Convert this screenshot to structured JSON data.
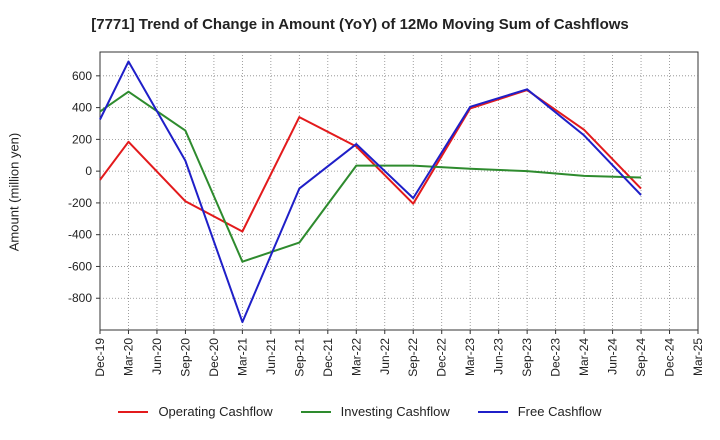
{
  "chart_data": {
    "type": "line",
    "title": "[7771]  Trend of Change in Amount (YoY) of 12Mo Moving Sum of Cashflows",
    "xlabel": "",
    "ylabel": "Amount (million yen)",
    "ylim": [
      -1000,
      750
    ],
    "yticks": [
      600,
      400,
      200,
      0,
      -200,
      -400,
      -600,
      -800
    ],
    "categories": [
      "Dec-19",
      "Mar-20",
      "Jun-20",
      "Sep-20",
      "Dec-20",
      "Mar-21",
      "Jun-21",
      "Sep-21",
      "Dec-21",
      "Mar-22",
      "Jun-22",
      "Sep-22",
      "Dec-22",
      "Mar-23",
      "Jun-23",
      "Sep-23",
      "Dec-23",
      "Mar-24",
      "Jun-24",
      "Sep-24",
      "Dec-24",
      "Mar-25"
    ],
    "x_count": 22,
    "series": [
      {
        "name": "Operating Cashflow",
        "color": "#e31a1c",
        "values": [
          -55,
          185,
          null,
          -190,
          null,
          -380,
          null,
          340,
          null,
          155,
          null,
          -205,
          null,
          395,
          null,
          510,
          null,
          260,
          null,
          -110,
          null,
          null
        ]
      },
      {
        "name": "Investing Cashflow",
        "color": "#2e8b2e",
        "values": [
          375,
          500,
          null,
          255,
          null,
          -570,
          null,
          -450,
          null,
          35,
          null,
          35,
          null,
          15,
          null,
          0,
          null,
          -30,
          null,
          -40,
          null,
          null
        ]
      },
      {
        "name": "Free Cashflow",
        "color": "#1f1fc8",
        "values": [
          325,
          690,
          null,
          65,
          null,
          -950,
          null,
          -110,
          null,
          170,
          null,
          -170,
          null,
          405,
          null,
          515,
          null,
          225,
          null,
          -150,
          null,
          null
        ]
      }
    ]
  }
}
